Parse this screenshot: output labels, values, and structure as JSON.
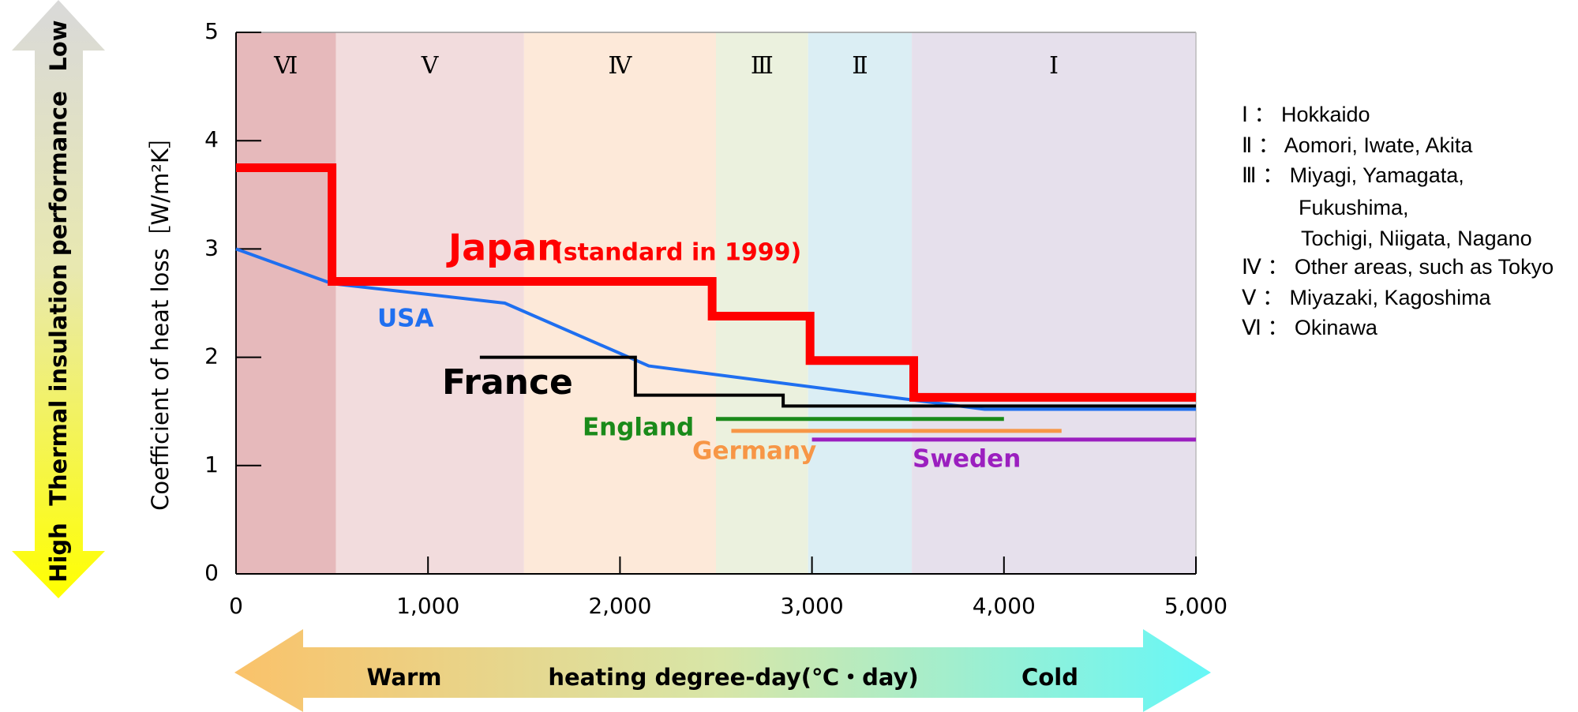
{
  "chart_data": {
    "type": "line",
    "y_label": "Coefficient of heat loss［W/m²K］",
    "xlim": [
      0,
      5000
    ],
    "ylim": [
      0,
      5
    ],
    "xticks": [
      0,
      {
        "value": 1000,
        "label": "1,000"
      },
      {
        "value": 2000,
        "label": "2,000"
      },
      {
        "value": 3000,
        "label": "3,000"
      },
      {
        "value": 4000,
        "label": "4,000"
      },
      {
        "value": 5000,
        "label": "5,000"
      }
    ],
    "yticks": [
      0,
      1,
      2,
      3,
      4,
      5
    ],
    "zones": [
      {
        "label": "Ⅵ",
        "start": 0,
        "end": 520,
        "color": "#e6b9bb"
      },
      {
        "label": "Ⅴ",
        "start": 520,
        "end": 1500,
        "color": "#f2dcdd"
      },
      {
        "label": "Ⅳ",
        "start": 1500,
        "end": 2500,
        "color": "#fde9d9"
      },
      {
        "label": "Ⅲ",
        "start": 2500,
        "end": 2980,
        "color": "#ebf1de"
      },
      {
        "label": "Ⅱ",
        "start": 2980,
        "end": 3520,
        "color": "#dbeef4"
      },
      {
        "label": "Ⅰ",
        "start": 3520,
        "end": 5000,
        "color": "#e6e0ec"
      }
    ],
    "series": [
      {
        "name": "Japan",
        "color": "#ff0000",
        "x": [
          0,
          500,
          500,
          2480,
          2480,
          2990,
          2990,
          3530,
          3530,
          5000
        ],
        "values": [
          3.75,
          3.75,
          2.7,
          2.7,
          2.38,
          2.38,
          1.97,
          1.97,
          1.63,
          1.63
        ]
      },
      {
        "name": "USA",
        "color": "#1f6ff0",
        "x": [
          0,
          500,
          1400,
          2150,
          3900,
          5000
        ],
        "values": [
          3.0,
          2.68,
          2.5,
          1.92,
          1.52,
          1.52
        ]
      },
      {
        "name": "France",
        "color": "#000000",
        "x": [
          1270,
          2080,
          2080,
          2850,
          2850,
          5000
        ],
        "values": [
          2.0,
          2.0,
          1.65,
          1.65,
          1.55,
          1.55
        ]
      },
      {
        "name": "England",
        "color": "#1a8a1a",
        "x": [
          2500,
          4000
        ],
        "values": [
          1.43,
          1.43
        ]
      },
      {
        "name": "Germany",
        "color": "#f79646",
        "x": [
          2580,
          4300
        ],
        "values": [
          1.32,
          1.32
        ]
      },
      {
        "name": "Sweden",
        "color": "#9b1fbf",
        "x": [
          3000,
          5000
        ],
        "values": [
          1.24,
          1.24
        ]
      }
    ],
    "annotations": {
      "japan_note": "(standard in 1999)"
    },
    "left_arrow": {
      "top": "Low",
      "middle": "Thermal insulation performance",
      "bottom": "High"
    },
    "bottom_arrow": {
      "left": "Warm",
      "middle": "heating degree-day(℃・day)",
      "right": "Cold"
    },
    "zone_legend": [
      "Ⅰ ： Hokkaido",
      "Ⅱ ： Aomori, Iwate, Akita",
      "Ⅲ ： Miyagi, Yamagata,",
      "Fukushima,",
      "Tochigi,  Niigata, Nagano",
      "Ⅳ ： Other areas, such as Tokyo",
      "Ⅴ ： Miyazaki, Kagoshima",
      "Ⅵ ： Okinawa"
    ]
  }
}
